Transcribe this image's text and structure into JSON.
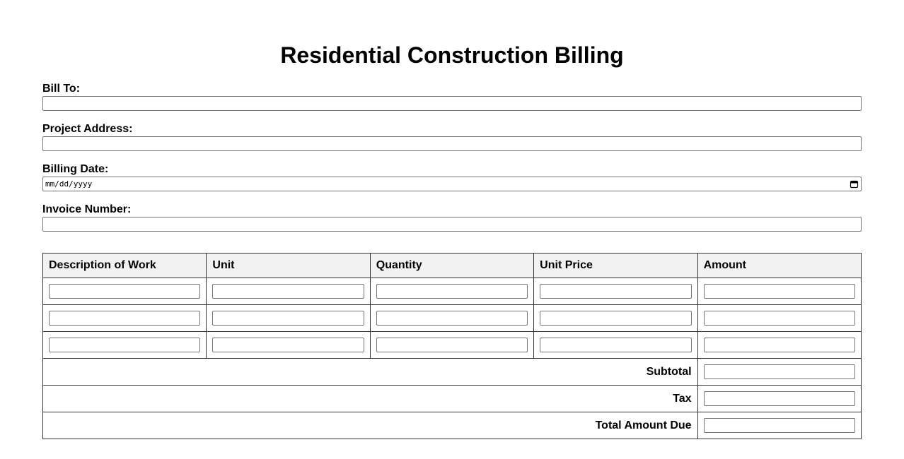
{
  "header": {
    "title": "Residential Construction Billing"
  },
  "fields": [
    {
      "label": "Bill To:"
    },
    {
      "label": "Project Address:"
    },
    {
      "label": "Billing Date:",
      "placeholder": "mm/dd/yyyy"
    },
    {
      "label": "Invoice Number:"
    }
  ],
  "table": {
    "columns": [
      "Description of Work",
      "Unit",
      "Quantity",
      "Unit Price",
      "Amount"
    ],
    "summary": [
      "Subtotal",
      "Tax",
      "Total Amount Due"
    ]
  }
}
